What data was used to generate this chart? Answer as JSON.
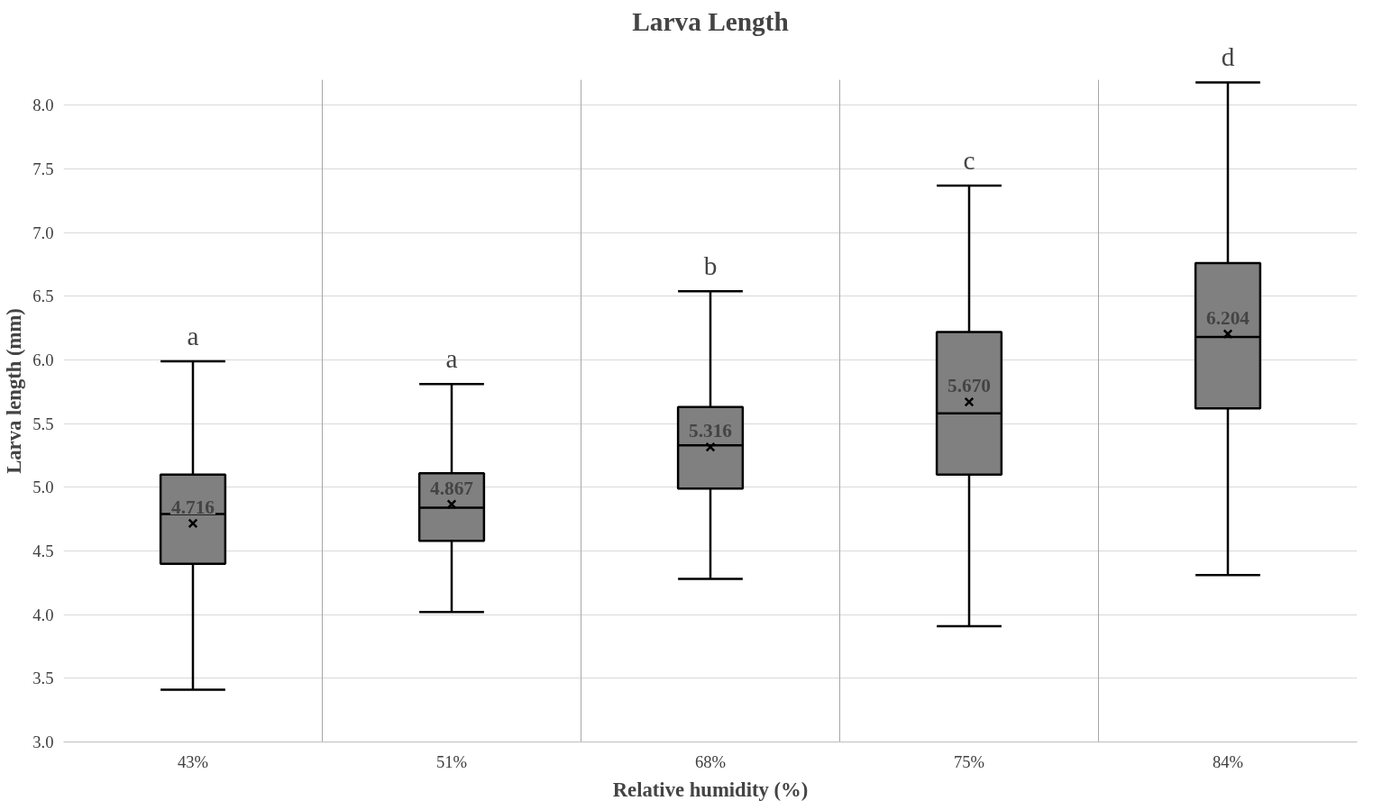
{
  "chart_data": {
    "type": "box",
    "title": "Larva Length",
    "xlabel": "Relative humidity (%)",
    "ylabel": "Larva length (mm)",
    "categories": [
      "43%",
      "51%",
      "68%",
      "75%",
      "84%"
    ],
    "boxes": [
      {
        "low": 3.41,
        "q1": 4.4,
        "median": 4.79,
        "q3": 5.1,
        "high": 5.99,
        "mean": 4.716
      },
      {
        "low": 4.02,
        "q1": 4.58,
        "median": 4.84,
        "q3": 5.11,
        "high": 5.81,
        "mean": 4.867
      },
      {
        "low": 4.28,
        "q1": 4.99,
        "median": 5.33,
        "q3": 5.63,
        "high": 6.54,
        "mean": 5.316
      },
      {
        "low": 3.91,
        "q1": 5.1,
        "median": 5.58,
        "q3": 6.22,
        "high": 7.37,
        "mean": 5.67
      },
      {
        "low": 4.31,
        "q1": 5.62,
        "median": 6.18,
        "q3": 6.76,
        "high": 8.18,
        "mean": 6.204
      }
    ],
    "value_labels": [
      "4.716",
      "4.867",
      "5.316",
      "5.670",
      "6.204"
    ],
    "color": "#808080",
    "marker": "cross",
    "ylim": [
      3.0,
      8.2
    ],
    "yticks": [
      {
        "value": 3.0,
        "label": "3.0"
      },
      {
        "value": 3.5,
        "label": "3.5"
      },
      {
        "value": 4.0,
        "label": "4.0"
      },
      {
        "value": 4.5,
        "label": "4.5"
      },
      {
        "value": 5.0,
        "label": "5.0"
      },
      {
        "value": 5.5,
        "label": "5.5"
      },
      {
        "value": 6.0,
        "label": "6.0"
      },
      {
        "value": 6.5,
        "label": "6.5"
      },
      {
        "value": 7.0,
        "label": "7.0"
      },
      {
        "value": 7.5,
        "label": "7.5"
      },
      {
        "value": 8.0,
        "label": "8.0"
      }
    ],
    "grid": true,
    "annotations": [
      "a",
      "a",
      "b",
      "c",
      "d"
    ]
  }
}
